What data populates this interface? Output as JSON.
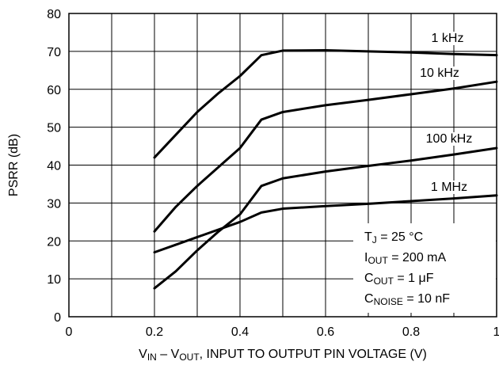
{
  "chart_data": {
    "type": "line",
    "xlabel": [
      {
        "text": "V"
      },
      {
        "text": "IN",
        "sub": true
      },
      {
        "text": " – V"
      },
      {
        "text": "OUT",
        "sub": true
      },
      {
        "text": ", INPUT TO OUTPUT PIN VOLTAGE (V)"
      }
    ],
    "ylabel": "PSRR (dB)",
    "x": [
      0.2,
      0.25,
      0.3,
      0.35,
      0.4,
      0.45,
      0.5,
      0.6,
      0.7,
      0.8,
      0.9,
      1
    ],
    "series": [
      {
        "name": "1 kHz",
        "color": "#000000",
        "values": [
          42,
          48,
          54,
          59,
          63.5,
          69,
          70.2,
          70.3,
          70,
          69.7,
          69.3,
          69
        ]
      },
      {
        "name": "10 kHz",
        "color": "#000000",
        "values": [
          22.5,
          29,
          34.5,
          39.5,
          44.5,
          52,
          54,
          55.8,
          57.2,
          58.7,
          60.2,
          62
        ]
      },
      {
        "name": "100 kHz",
        "color": "#000000",
        "values": [
          7.5,
          12,
          17.5,
          22.5,
          27,
          34.5,
          36.5,
          38.3,
          39.8,
          41.2,
          42.8,
          44.5
        ]
      },
      {
        "name": "1 MHz",
        "color": "#000000",
        "values": [
          17,
          19,
          21,
          23,
          25,
          27.5,
          28.5,
          29.2,
          29.8,
          30.5,
          31.2,
          32
        ]
      }
    ],
    "xlim": [
      0,
      1
    ],
    "xticks": [
      0,
      0.2,
      0.4,
      0.6,
      0.8,
      1
    ],
    "xminor_grid": [
      0.1,
      0.3,
      0.5,
      0.7,
      0.9
    ],
    "ylim": [
      0,
      80
    ],
    "yticks": [
      0,
      10,
      20,
      30,
      40,
      50,
      60,
      70,
      80
    ],
    "grid": true,
    "annotations": [
      [
        {
          "text": "T"
        },
        {
          "text": "J",
          "sub": true
        },
        {
          "text": " = 25 °C"
        }
      ],
      [
        {
          "text": "I"
        },
        {
          "text": "OUT",
          "sub": true
        },
        {
          "text": " = 200 mA"
        }
      ],
      [
        {
          "text": "C"
        },
        {
          "text": "OUT",
          "sub": true
        },
        {
          "text": " = 1 μF"
        }
      ],
      [
        {
          "text": "C"
        },
        {
          "text": "NOISE",
          "sub": true
        },
        {
          "text": " = 10 nF"
        }
      ]
    ]
  }
}
